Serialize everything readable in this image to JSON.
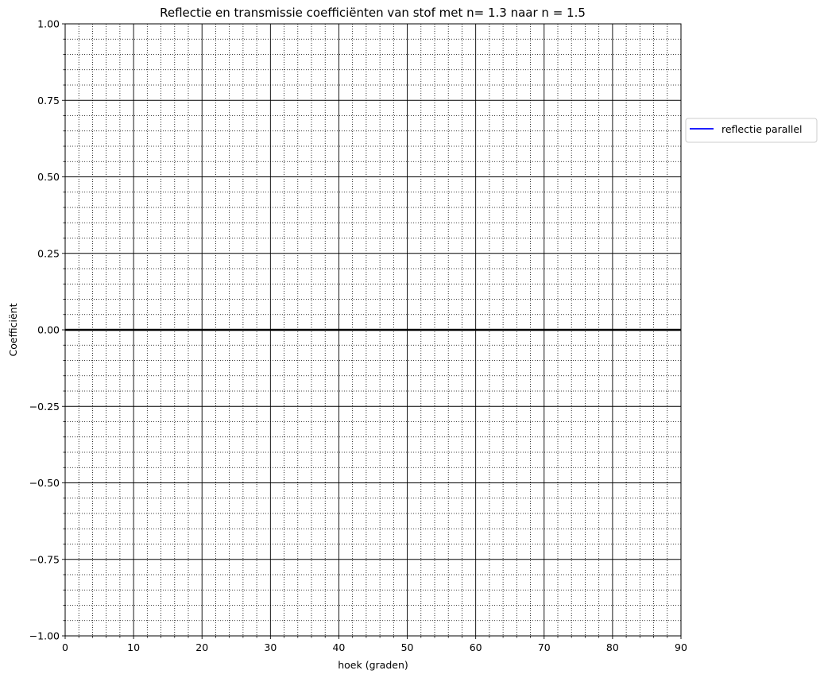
{
  "chart_data": {
    "type": "line",
    "title": "Reflectie en transmissie coefficiënten van stof met n= 1.3 naar n = 1.5",
    "xlabel": "hoek (graden)",
    "ylabel": "Coefficiënt",
    "xlim": [
      0,
      90
    ],
    "ylim": [
      -1,
      1
    ],
    "x_ticks": [
      0,
      10,
      20,
      30,
      40,
      50,
      60,
      70,
      80,
      90
    ],
    "x_tick_labels": [
      "0",
      "10",
      "20",
      "30",
      "40",
      "50",
      "60",
      "70",
      "80",
      "90"
    ],
    "y_ticks": [
      -1.0,
      -0.75,
      -0.5,
      -0.25,
      0.0,
      0.25,
      0.5,
      0.75,
      1.0
    ],
    "y_tick_labels": [
      "−1.00",
      "−0.75",
      "−0.50",
      "−0.25",
      "0.00",
      "0.25",
      "0.50",
      "0.75",
      "1.00"
    ],
    "x_minor_step": 2,
    "y_minor_step": 0.05,
    "grid": {
      "major": "solid",
      "minor": "dotted",
      "color": "#000000"
    },
    "reference_line": {
      "y": 0,
      "color": "#000000"
    },
    "series": [
      {
        "name": "reflectie parallel",
        "color": "#0000ff",
        "x": [],
        "y": []
      }
    ],
    "legend": {
      "placement": "outside-right-upper"
    }
  }
}
